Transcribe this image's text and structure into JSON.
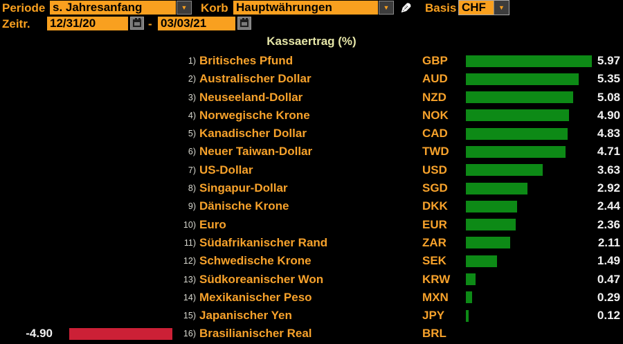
{
  "toolbar": {
    "periode_label": "Periode",
    "periode_value": "s. Jahresanfang",
    "korb_label": "Korb",
    "korb_value": "Hauptwährungen",
    "basis_label": "Basis",
    "basis_value": "CHF",
    "zeitraum_label": "Zeitr.",
    "date_from": "12/31/20",
    "date_separator": "-",
    "date_to": "03/03/21"
  },
  "chart_data": {
    "type": "bar",
    "orientation": "horizontal",
    "title": "Kassaertrag (%)",
    "unit": "%",
    "xlim": [
      -5,
      6.2
    ],
    "legend": "none",
    "grid": false,
    "positive_color": "#0d8a16",
    "negative_color": "#cc2036",
    "rows": [
      {
        "num": "1)",
        "name": "Britisches Pfund",
        "code": "GBP",
        "value": 5.97
      },
      {
        "num": "2)",
        "name": "Australischer Dollar",
        "code": "AUD",
        "value": 5.35
      },
      {
        "num": "3)",
        "name": "Neuseeland-Dollar",
        "code": "NZD",
        "value": 5.08
      },
      {
        "num": "4)",
        "name": "Norwegische Krone",
        "code": "NOK",
        "value": 4.9
      },
      {
        "num": "5)",
        "name": "Kanadischer Dollar",
        "code": "CAD",
        "value": 4.83
      },
      {
        "num": "6)",
        "name": "Neuer Taiwan-Dollar",
        "code": "TWD",
        "value": 4.71
      },
      {
        "num": "7)",
        "name": "US-Dollar",
        "code": "USD",
        "value": 3.63
      },
      {
        "num": "8)",
        "name": "Singapur-Dollar",
        "code": "SGD",
        "value": 2.92
      },
      {
        "num": "9)",
        "name": "Dänische Krone",
        "code": "DKK",
        "value": 2.44
      },
      {
        "num": "10)",
        "name": "Euro",
        "code": "EUR",
        "value": 2.36
      },
      {
        "num": "11)",
        "name": "Südafrikanischer Rand",
        "code": "ZAR",
        "value": 2.11
      },
      {
        "num": "12)",
        "name": "Schwedische Krone",
        "code": "SEK",
        "value": 1.49
      },
      {
        "num": "13)",
        "name": "Südkoreanischer Won",
        "code": "KRW",
        "value": 0.47
      },
      {
        "num": "14)",
        "name": "Mexikanischer Peso",
        "code": "MXN",
        "value": 0.29
      },
      {
        "num": "15)",
        "name": "Japanischer Yen",
        "code": "JPY",
        "value": 0.12
      },
      {
        "num": "16)",
        "name": "Brasilianischer Real",
        "code": "BRL",
        "value": -4.9
      }
    ]
  },
  "colors": {
    "background": "#000000",
    "amber_text": "#f7a22b",
    "field_background": "#f9a01f",
    "field_text": "#000000",
    "title_text": "#e6e6a8",
    "value_text": "#f2f2f2",
    "row_number_text": "#d9d9d0",
    "bar_green": "#0d8a16",
    "bar_red": "#cc2036"
  }
}
